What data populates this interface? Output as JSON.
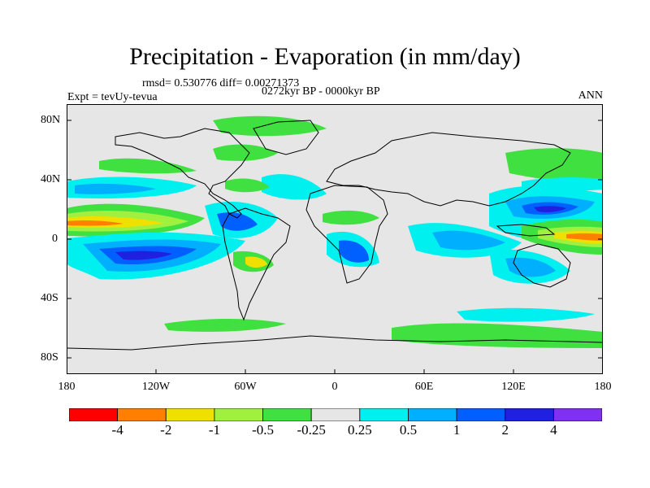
{
  "header": {
    "title": "Precipitation - Evaporation (in mm/day)",
    "stats": "rmsd= 0.530776 diff= 0.00271373",
    "period": "0272kyr BP - 0000kyr BP",
    "experiment": "Expt = tevUy-tevua",
    "season": "ANN"
  },
  "axes": {
    "y_labels": [
      "80N",
      "40N",
      "0",
      "40S",
      "80S"
    ],
    "x_labels": [
      "180",
      "120W",
      "60W",
      "0",
      "60E",
      "120E",
      "180"
    ]
  },
  "colorbar": {
    "colors": [
      "#ff0000",
      "#ff8000",
      "#f0e000",
      "#a0f040",
      "#40e040",
      "#e6e6e6",
      "#00f0f0",
      "#00b0ff",
      "#0060ff",
      "#2020e0",
      "#8030f0"
    ],
    "labels": [
      "-4",
      "-2",
      "-1",
      "-0.5",
      "-0.25",
      "0.25",
      "0.5",
      "1",
      "2",
      "4"
    ]
  },
  "colors": {
    "background_field": "#e6e6e6",
    "coastline": "#000000"
  }
}
